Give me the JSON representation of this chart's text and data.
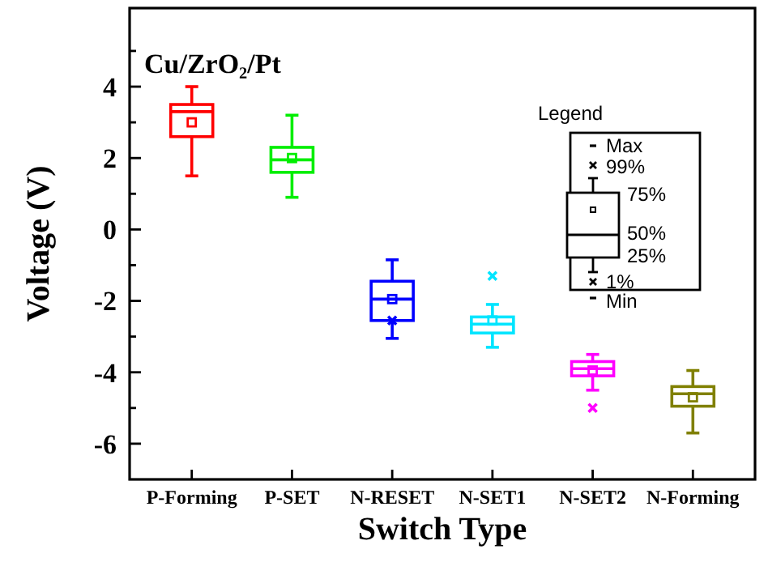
{
  "chart_data": {
    "type": "box",
    "title": "Cu/ZrO₂/Pt",
    "xlabel": "Switch Type",
    "ylabel": "Voltage (V)",
    "categories": [
      "P-Forming",
      "P-SET",
      "N-RESET",
      "N-SET1",
      "N-SET2",
      "N-Forming"
    ],
    "colors": [
      "#ff0000",
      "#00ee00",
      "#0000ff",
      "#00e5ff",
      "#ff00ff",
      "#808000"
    ],
    "boxes": [
      {
        "low": 1.5,
        "q1": 2.6,
        "median": 3.3,
        "q3": 3.5,
        "high": 4.0,
        "mean": 3.0
      },
      {
        "low": 0.9,
        "q1": 1.6,
        "median": 1.95,
        "q3": 2.3,
        "high": 3.2,
        "mean": 2.0
      },
      {
        "low": -3.05,
        "q1": -2.55,
        "median": -1.95,
        "q3": -1.45,
        "high": -0.85,
        "mean": -1.95,
        "outliers": [
          -2.55
        ]
      },
      {
        "low": -3.3,
        "q1": -2.9,
        "median": -2.65,
        "q3": -2.45,
        "high": -2.1,
        "mean": -2.55,
        "outliers": [
          -1.3
        ]
      },
      {
        "low": -4.5,
        "q1": -4.1,
        "median": -3.9,
        "q3": -3.7,
        "high": -3.5,
        "mean": -3.95,
        "outliers": [
          -5.0
        ]
      },
      {
        "low": -5.7,
        "q1": -4.95,
        "median": -4.6,
        "q3": -4.4,
        "high": -3.95,
        "mean": -4.7
      }
    ],
    "ylim": [
      -7,
      6.2
    ],
    "yticks": [
      -6,
      {
        "value": -5,
        "label": null
      },
      -4,
      {
        "value": -3,
        "label": null
      },
      -2,
      {
        "value": -1,
        "label": null
      },
      0,
      {
        "value": 1,
        "label": null
      },
      2,
      {
        "value": 3,
        "label": null
      },
      4,
      {
        "value": 5,
        "label": null
      }
    ],
    "annotations": [
      "Legend",
      "Max",
      "99%",
      "75%",
      "50%",
      "25%",
      "1%",
      "Min"
    ]
  }
}
